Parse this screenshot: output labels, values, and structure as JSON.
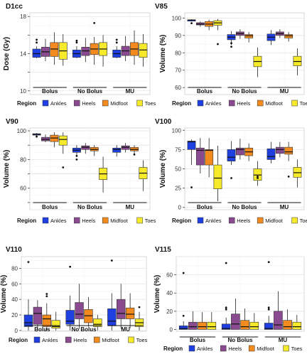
{
  "colors": {
    "Ankles": "#1f3fe0",
    "Heels": "#8a4a8f",
    "Midfoot": "#f28a1e",
    "Toes": "#f7ea2a"
  },
  "legend": {
    "title": "Region",
    "items": [
      "Ankles",
      "Heels",
      "Midfoot",
      "Toes"
    ]
  },
  "groups": [
    "Bolus",
    "No Bolus",
    "MU"
  ],
  "chart_data": [
    {
      "type": "box",
      "title": "D1cc",
      "ylabel": "Dose (Gy)",
      "ylim": [
        9.6,
        18.4
      ],
      "yticks": [
        10,
        12,
        14,
        16,
        18
      ],
      "ytick_labels": [
        "10",
        "",
        "14",
        "",
        "18"
      ],
      "groups": [
        "Bolus",
        "No Bolus",
        "MU"
      ],
      "series_names": [
        "Ankles",
        "Heels",
        "Midfoot",
        "Toes"
      ],
      "boxes": [
        [
          [
            13.5,
            13.6,
            14.0,
            14.5,
            14.8,
            [
              15.2,
              15.5
            ]
          ],
          [
            13.2,
            13.7,
            14.2,
            14.7,
            15.6,
            []
          ],
          [
            12.8,
            13.7,
            14.5,
            15.2,
            16.3,
            []
          ],
          [
            12.7,
            13.4,
            14.3,
            15.2,
            16.1,
            []
          ]
        ],
        [
          [
            13.5,
            13.6,
            14.0,
            14.4,
            14.8,
            [
              15.2,
              15.4
            ]
          ],
          [
            13.1,
            13.8,
            14.3,
            14.7,
            15.7,
            []
          ],
          [
            12.8,
            13.9,
            14.5,
            15.1,
            15.8,
            [
              17.3
            ]
          ],
          [
            12.6,
            13.8,
            14.5,
            15.2,
            16.0,
            []
          ]
        ],
        [
          [
            13.5,
            13.6,
            14.0,
            14.4,
            14.8,
            [
              15.2,
              15.5
            ]
          ],
          [
            13.2,
            13.8,
            14.3,
            14.8,
            15.9,
            []
          ],
          [
            12.8,
            13.8,
            14.5,
            15.2,
            16.5,
            []
          ],
          [
            12.6,
            13.6,
            14.4,
            15.1,
            16.1,
            []
          ]
        ]
      ]
    },
    {
      "type": "box",
      "title": "V85",
      "ylabel": "Volume (%)",
      "ylim": [
        56,
        103
      ],
      "yticks": [
        60,
        70,
        80,
        90,
        100
      ],
      "ytick_labels": [
        "60",
        "70",
        "80",
        "90",
        "100"
      ],
      "groups": [
        "Bolus",
        "No Bolus",
        "MU"
      ],
      "series_names": [
        "Ankles",
        "Heels",
        "Midfoot",
        "Toes"
      ],
      "boxes": [
        [
          [
            98.0,
            98.2,
            98.8,
            99.0,
            99.3,
            [
              97.0
            ]
          ],
          [
            95.0,
            96.0,
            96.5,
            97.3,
            98.0,
            []
          ],
          [
            93.0,
            95.2,
            96.5,
            98.0,
            99.0,
            []
          ],
          [
            93.0,
            95.8,
            97.2,
            98.5,
            99.5,
            [
              85.0
            ]
          ]
        ],
        [
          [
            84.5,
            87.5,
            89.0,
            90.5,
            92.5,
            [
              83.5,
              85.5
            ]
          ],
          [
            88.0,
            90.0,
            91.0,
            92.0,
            93.5,
            []
          ],
          [
            86.0,
            88.5,
            89.8,
            90.5,
            92.0,
            []
          ],
          [
            66.0,
            72.0,
            75.0,
            78.0,
            83.0,
            []
          ]
        ],
        [
          [
            84.5,
            87.0,
            89.0,
            90.8,
            93.0,
            []
          ],
          [
            88.5,
            90.0,
            91.0,
            92.0,
            93.5,
            []
          ],
          [
            86.5,
            88.5,
            89.8,
            90.5,
            92.0,
            []
          ],
          [
            67.0,
            72.5,
            75.0,
            78.0,
            82.5,
            []
          ]
        ]
      ]
    },
    {
      "type": "box",
      "title": "V90",
      "ylabel": "Volume (%)",
      "ylim": [
        45,
        102
      ],
      "yticks": [
        50,
        60,
        70,
        80,
        90,
        100
      ],
      "ytick_labels": [
        "",
        "60",
        "",
        "80",
        "",
        "100"
      ],
      "groups": [
        "Bolus",
        "No Bolus",
        "MU"
      ],
      "series_names": [
        "Ankles",
        "Heels",
        "Midfoot",
        "Toes"
      ],
      "boxes": [
        [
          [
            96.5,
            97.0,
            97.5,
            98.0,
            98.5,
            [
              96.0
            ]
          ],
          [
            92.0,
            93.0,
            94.0,
            95.5,
            97.5,
            []
          ],
          [
            88.5,
            92.5,
            95.0,
            97.0,
            99.0,
            []
          ],
          [
            84.0,
            90.0,
            94.0,
            96.5,
            99.0,
            [
              74.5
            ]
          ]
        ],
        [
          [
            82.0,
            85.0,
            86.5,
            88.0,
            90.0,
            [
              80.0,
              82.5
            ]
          ],
          [
            84.0,
            87.0,
            88.5,
            89.5,
            91.5,
            []
          ],
          [
            82.5,
            86.0,
            87.0,
            88.5,
            90.0,
            []
          ],
          [
            57.0,
            66.0,
            70.0,
            74.0,
            82.0,
            []
          ]
        ],
        [
          [
            82.0,
            85.0,
            87.0,
            88.0,
            90.0,
            []
          ],
          [
            85.0,
            87.0,
            88.5,
            89.5,
            91.5,
            []
          ],
          [
            84.0,
            86.0,
            87.0,
            88.5,
            90.0,
            [
              83.5
            ]
          ],
          [
            58.0,
            66.5,
            70.5,
            74.5,
            79.5,
            []
          ]
        ]
      ]
    },
    {
      "type": "box",
      "title": "V100",
      "ylabel": "Volume (%)",
      "ylim": [
        -3,
        103
      ],
      "yticks": [
        0,
        25,
        50,
        75,
        100
      ],
      "ytick_labels": [
        "0",
        "25",
        "50",
        "75",
        "100"
      ],
      "groups": [
        "Bolus",
        "No Bolus",
        "MU"
      ],
      "series_names": [
        "Ankles",
        "Heels",
        "Midfoot",
        "Toes"
      ],
      "boxes": [
        [
          [
            55.0,
            75.0,
            85.0,
            86.0,
            88.0,
            [
              26.0
            ]
          ],
          [
            44.0,
            55.0,
            74.0,
            77.0,
            90.0,
            []
          ],
          [
            39.0,
            55.0,
            74.0,
            75.0,
            90.0,
            []
          ],
          [
            8.0,
            24.0,
            38.0,
            55.0,
            80.0,
            []
          ]
        ],
        [
          [
            55.0,
            60.0,
            65.0,
            75.0,
            86.0,
            [
              38.0
            ]
          ],
          [
            62.0,
            68.0,
            75.0,
            77.0,
            89.0,
            []
          ],
          [
            60.0,
            67.0,
            72.0,
            77.0,
            83.0,
            []
          ],
          [
            28.0,
            35.0,
            42.0,
            50.0,
            60.0,
            [
              38.0,
              40.0
            ]
          ]
        ],
        [
          [
            57.0,
            62.0,
            66.0,
            76.0,
            85.0,
            []
          ],
          [
            65.0,
            70.0,
            75.0,
            78.0,
            85.0,
            []
          ],
          [
            60.0,
            69.0,
            72.0,
            78.0,
            85.0,
            [
              40.0
            ]
          ],
          [
            26.0,
            39.0,
            45.0,
            52.0,
            62.0,
            []
          ]
        ]
      ]
    },
    {
      "type": "box",
      "title": "V110",
      "ylabel": "Volume (%)",
      "ylim": [
        -1,
        95
      ],
      "yticks": [
        0,
        20,
        40,
        60,
        80
      ],
      "ytick_labels": [
        "0",
        "20",
        "40",
        "60",
        "80"
      ],
      "groups": [
        "Bolus",
        "No Bolus",
        "MU"
      ],
      "series_names": [
        "Ankles",
        "Heels",
        "Midfoot",
        "Toes"
      ],
      "boxes": [
        [
          [
            0.0,
            5.0,
            10.0,
            20.0,
            40.0,
            [
              88.0
            ]
          ],
          [
            0.0,
            8.0,
            22.0,
            30.0,
            39.0,
            []
          ],
          [
            0.0,
            5.0,
            15.0,
            20.0,
            35.0,
            [
              44.0,
              47.0
            ]
          ],
          [
            0.0,
            3.0,
            5.0,
            13.0,
            24.0,
            []
          ]
        ],
        [
          [
            0.0,
            8.0,
            12.0,
            26.0,
            45.0,
            [
              82.0
            ]
          ],
          [
            2.0,
            15.0,
            21.0,
            36.0,
            60.0,
            []
          ],
          [
            5.0,
            10.0,
            19.0,
            27.0,
            43.0,
            []
          ],
          [
            0.0,
            5.0,
            8.0,
            15.0,
            20.0,
            []
          ]
        ],
        [
          [
            0.0,
            6.0,
            12.0,
            28.0,
            48.0,
            [
              90.0
            ]
          ],
          [
            2.0,
            15.0,
            22.0,
            40.0,
            60.0,
            []
          ],
          [
            3.0,
            15.0,
            21.0,
            29.0,
            48.0,
            []
          ],
          [
            0.0,
            5.0,
            10.0,
            15.0,
            24.0,
            [
              30.0
            ]
          ]
        ]
      ]
    },
    {
      "type": "box",
      "title": "V115",
      "ylabel": "Volume (%)",
      "ylim": [
        -2,
        80
      ],
      "yticks": [
        0,
        20,
        40,
        60
      ],
      "ytick_labels": [
        "0",
        "20",
        "40",
        "60"
      ],
      "groups": [
        "Bolus",
        "No Bolus",
        "MU"
      ],
      "series_names": [
        "Ankles",
        "Heels",
        "Midfoot",
        "Toes"
      ],
      "boxes": [
        [
          [
            0.0,
            0.0,
            1.0,
            4.0,
            9.0,
            [
              15.0,
              62.0
            ]
          ],
          [
            0.0,
            0.0,
            3.0,
            8.0,
            20.0,
            []
          ],
          [
            0.0,
            0.0,
            3.0,
            8.0,
            19.0,
            []
          ],
          [
            0.0,
            0.0,
            3.0,
            8.0,
            19.0,
            []
          ]
        ],
        [
          [
            0.0,
            0.0,
            1.0,
            6.0,
            13.0,
            [
              22.0,
              24.0,
              73.0
            ]
          ],
          [
            0.0,
            0.0,
            6.0,
            17.0,
            34.0,
            []
          ],
          [
            0.0,
            0.0,
            3.0,
            10.0,
            23.0,
            []
          ],
          [
            0.0,
            0.0,
            3.0,
            8.0,
            18.0,
            []
          ]
        ],
        [
          [
            0.0,
            0.0,
            1.0,
            7.0,
            15.0,
            [
              22.0,
              24.0,
              74.0
            ]
          ],
          [
            0.0,
            0.0,
            5.0,
            20.0,
            42.0,
            []
          ],
          [
            0.0,
            0.0,
            3.0,
            10.0,
            22.0,
            []
          ],
          [
            0.0,
            0.0,
            3.0,
            8.0,
            16.0,
            []
          ]
        ]
      ]
    }
  ]
}
